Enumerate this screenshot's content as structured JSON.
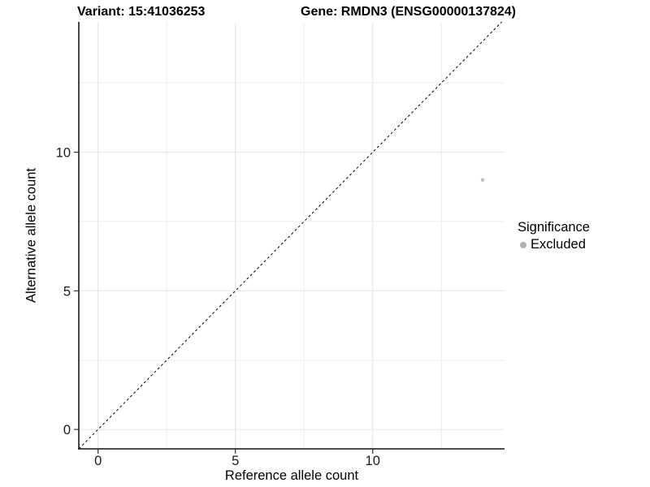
{
  "chart_data": {
    "type": "scatter",
    "title_left": "Variant: 15:41036253",
    "title_right": "Gene: RMDN3 (ENSG00000137824)",
    "xlabel": "Reference allele count",
    "ylabel": "Alternative allele count",
    "xlim": [
      -0.7,
      14.8
    ],
    "ylim": [
      -0.7,
      14.7
    ],
    "x_ticks": [
      0,
      5,
      10
    ],
    "y_ticks": [
      0,
      5,
      10
    ],
    "x_minor_grid": [
      2.5,
      7.5,
      12.5
    ],
    "y_minor_grid": [
      2.5,
      7.5,
      12.5
    ],
    "grid": true,
    "points": [
      {
        "x": 14,
        "y": 9,
        "significance": "Excluded"
      }
    ],
    "identity_line": {
      "slope": 1,
      "intercept": 0,
      "linestyle": "dashed",
      "color": "#000000"
    },
    "legend": {
      "position": "right",
      "title": "Significance",
      "items": [
        {
          "label": "Excluded",
          "color": "#b3b3b3"
        }
      ]
    },
    "style": {
      "point_color": "#c0c0c0",
      "grid_major_color": "#e4e4e4",
      "grid_minor_color": "#ededed",
      "axis_line_color": "#333333",
      "tick_color": "#333333",
      "tick_label_color": "#1a1a1a",
      "background": "#ffffff"
    }
  }
}
